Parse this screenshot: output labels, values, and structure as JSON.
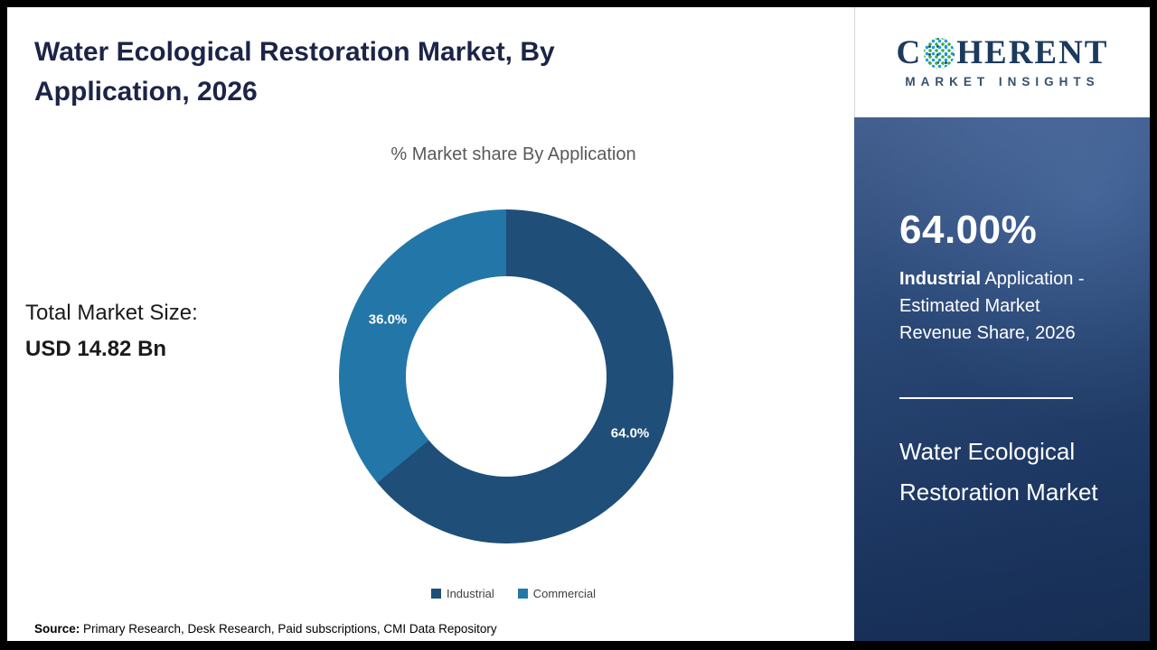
{
  "header": {
    "title": "Water Ecological Restoration Market, By Application, 2026"
  },
  "brand": {
    "name_prefix": "C",
    "name_suffix": "HERENT",
    "tagline": "MARKET INSIGHTS"
  },
  "left": {
    "total_market_label": "Total Market Size:",
    "total_market_value": "USD 14.82 Bn"
  },
  "chart_data": {
    "type": "pie",
    "donut": true,
    "title": "% Market share By Application",
    "labels": [
      "Industrial",
      "Commercial"
    ],
    "values": [
      64.0,
      36.0
    ],
    "display_labels": [
      "64.0%",
      "36.0%"
    ],
    "colors": [
      "#1f4e79",
      "#2277a8"
    ],
    "legend_position": "bottom"
  },
  "side_panel": {
    "stat_value": "64.00%",
    "stat_label_bold": "Industrial",
    "stat_label_rest": " Application - Estimated Market Revenue Share, 2026",
    "market_name": "Water Ecological Restoration Market"
  },
  "footer": {
    "source_label": "Source:",
    "source_text": " Primary Research, Desk Research, Paid subscriptions, CMI Data Repository"
  }
}
